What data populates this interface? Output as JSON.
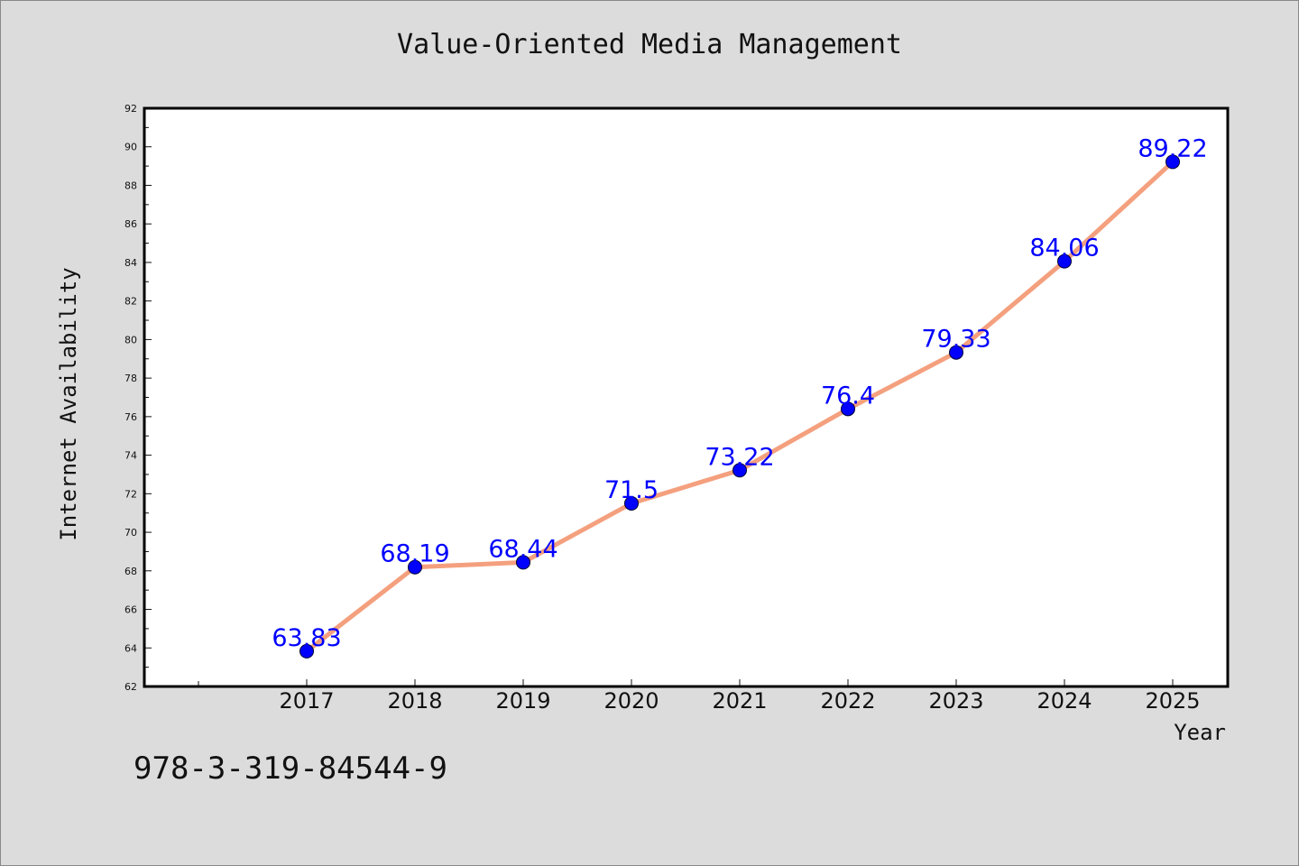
{
  "title": "Value-Oriented Media Management",
  "footer_code": "978-3-319-84544-9",
  "colors": {
    "background": "#dcdcdc",
    "plot_background": "#ffffff",
    "line": "#f4a07e",
    "marker": "#0000ff",
    "data_label": "#0000ff"
  },
  "chart_data": {
    "type": "line",
    "title": "Value-Oriented Media Management",
    "xlabel": "Year",
    "ylabel": "Internet Availability",
    "categories": [
      "2017",
      "2018",
      "2019",
      "2020",
      "2021",
      "2022",
      "2023",
      "2024",
      "2025"
    ],
    "series": [
      {
        "values": [
          63.83,
          68.19,
          68.44,
          71.5,
          73.22,
          76.4,
          79.33,
          84.06,
          89.22
        ]
      }
    ],
    "data_labels": [
      "63.83",
      "68.19",
      "68.44",
      "71.5",
      "73.22",
      "76.4",
      "79.33",
      "84.06",
      "89.22"
    ],
    "ylim": [
      62,
      92
    ],
    "y_ticks": [
      62,
      64,
      66,
      68,
      70,
      72,
      74,
      76,
      78,
      80,
      82,
      84,
      86,
      88,
      90,
      92
    ],
    "grid": false,
    "legend": "none"
  }
}
